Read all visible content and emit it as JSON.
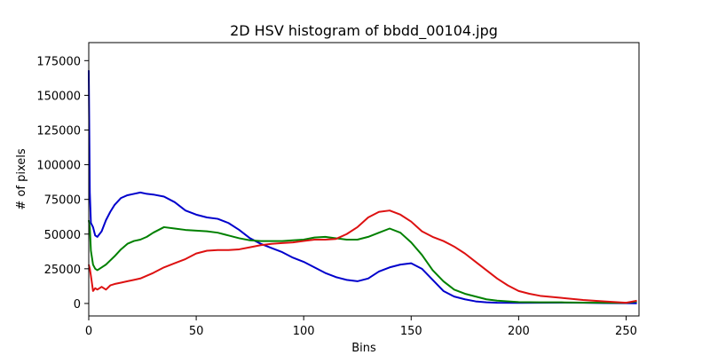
{
  "chart_data": {
    "type": "line",
    "title": "2D HSV histogram of bbdd_00104.jpg",
    "xlabel": "Bins",
    "ylabel": "# of pixels",
    "xlim": [
      0,
      256
    ],
    "ylim": [
      -9000,
      188000
    ],
    "xticks": [
      0,
      50,
      100,
      150,
      200,
      250
    ],
    "yticks": [
      0,
      25000,
      50000,
      75000,
      100000,
      125000,
      150000,
      175000
    ],
    "grid": false,
    "legend": "none",
    "series": [
      {
        "color": "#0000cc",
        "x": [
          0,
          0.5,
          1,
          2,
          3,
          4,
          6,
          8,
          10,
          12,
          15,
          18,
          21,
          24,
          27,
          30,
          35,
          40,
          45,
          50,
          55,
          60,
          65,
          70,
          75,
          80,
          85,
          90,
          95,
          100,
          105,
          110,
          115,
          120,
          125,
          130,
          135,
          140,
          145,
          150,
          155,
          160,
          165,
          170,
          175,
          180,
          185,
          190,
          200,
          210,
          220,
          230,
          240,
          250,
          255
        ],
        "y": [
          168000,
          80000,
          58000,
          55000,
          49000,
          48000,
          52000,
          60000,
          66000,
          71000,
          76000,
          78000,
          79000,
          80000,
          79000,
          78500,
          77000,
          73000,
          67000,
          64000,
          62000,
          61000,
          58000,
          53000,
          47000,
          43000,
          40000,
          37000,
          33000,
          30000,
          26000,
          22000,
          19000,
          17000,
          16000,
          18000,
          23000,
          26000,
          28000,
          29000,
          25000,
          17000,
          9000,
          5000,
          3000,
          1500,
          800,
          500,
          400,
          500,
          600,
          500,
          300,
          200,
          100
        ]
      },
      {
        "color": "#008000",
        "x": [
          0,
          0.5,
          1,
          2,
          3,
          4,
          6,
          8,
          10,
          12,
          15,
          18,
          21,
          24,
          27,
          30,
          35,
          40,
          45,
          50,
          55,
          60,
          65,
          70,
          75,
          80,
          85,
          90,
          95,
          100,
          105,
          110,
          115,
          120,
          125,
          130,
          135,
          140,
          145,
          150,
          155,
          160,
          165,
          170,
          175,
          180,
          185,
          190,
          200,
          210,
          220,
          230,
          240,
          250,
          255
        ],
        "y": [
          60000,
          55000,
          38000,
          28000,
          25000,
          24000,
          26000,
          28000,
          31000,
          34000,
          39000,
          43000,
          45000,
          46000,
          48000,
          51000,
          55000,
          54000,
          53000,
          52500,
          52000,
          51000,
          49000,
          47000,
          45500,
          45000,
          45000,
          45000,
          45500,
          46000,
          47500,
          48000,
          47000,
          46000,
          46000,
          48000,
          51000,
          54000,
          51000,
          44000,
          35000,
          24000,
          16000,
          10000,
          7000,
          5000,
          3000,
          2000,
          1000,
          800,
          800,
          600,
          500,
          400,
          1500
        ]
      },
      {
        "color": "#dd1111",
        "x": [
          0,
          0.5,
          1,
          2,
          3,
          4,
          6,
          8,
          10,
          12,
          15,
          18,
          21,
          24,
          27,
          30,
          35,
          40,
          45,
          50,
          55,
          60,
          65,
          70,
          75,
          80,
          85,
          90,
          95,
          100,
          105,
          110,
          115,
          120,
          125,
          130,
          135,
          140,
          145,
          150,
          155,
          160,
          165,
          170,
          175,
          180,
          185,
          190,
          195,
          200,
          205,
          210,
          220,
          230,
          240,
          250,
          255
        ],
        "y": [
          28000,
          25000,
          20000,
          9000,
          11000,
          10000,
          12000,
          10000,
          13000,
          14000,
          15000,
          16000,
          17000,
          18000,
          20000,
          22000,
          26000,
          29000,
          32000,
          36000,
          38000,
          38500,
          38500,
          39000,
          40500,
          42000,
          43000,
          43500,
          44000,
          45000,
          46000,
          46000,
          46500,
          50000,
          55000,
          62000,
          66000,
          67000,
          64000,
          59000,
          52000,
          48000,
          45000,
          41000,
          36000,
          30000,
          24000,
          18000,
          13000,
          9000,
          7000,
          5500,
          4000,
          2500,
          1500,
          500,
          2000
        ]
      }
    ]
  }
}
